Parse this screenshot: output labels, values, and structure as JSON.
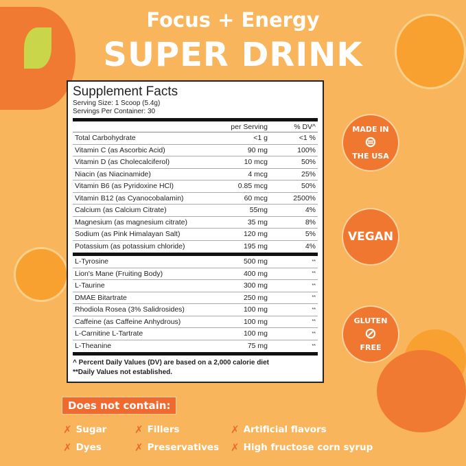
{
  "header": {
    "line1": "Focus + Energy",
    "line2": "SUPER DRINK"
  },
  "facts": {
    "title": "Supplement Facts",
    "serving_size": "Serving Size: 1 Scoop (5.4g)",
    "servings": "Servings Per Container: 30",
    "col_amount": "per Serving",
    "col_dv": "% DV^",
    "rows1": [
      [
        "Total Carbohydrate",
        "<1 g",
        "<1 %"
      ],
      [
        "Vitamin C (as Ascorbic Acid)",
        "90 mg",
        "100%"
      ],
      [
        "Vitamin D (as Cholecalciferol)",
        "10 mcg",
        "50%"
      ],
      [
        "Niacin (as Niacinamide)",
        "4 mcg",
        "25%"
      ],
      [
        "Vitamin B6 (as Pyridoxine HCl)",
        "0.85 mcg",
        "50%"
      ],
      [
        "Vitamin B12 (as Cyanocobalamin)",
        "60 mcg",
        "2500%"
      ],
      [
        "Calcium (as Calcium Citrate)",
        "55mg",
        "4%"
      ],
      [
        "Magnesium (as magnesium citrate)",
        "35 mg",
        "8%"
      ],
      [
        "Sodium (as Pink Himalayan Salt)",
        "120 mg",
        "5%"
      ],
      [
        "Potassium (as potassium chloride)",
        "195 mg",
        "4%"
      ]
    ],
    "rows2": [
      [
        "L-Tyrosine",
        "500 mg",
        "**"
      ],
      [
        "Lion's Mane (Fruiting Body)",
        "400 mg",
        "**"
      ],
      [
        "L-Taurine",
        "300 mg",
        "**"
      ],
      [
        "DMAE Bitartrate",
        "250 mg",
        "**"
      ],
      [
        "Rhodiola Rosea (3% Salidrosides)",
        "100 mg",
        "**"
      ],
      [
        "Caffeine (as Caffeine Anhydrous)",
        "100 mg",
        "**"
      ],
      [
        "L-Carnitine L-Tartrate",
        "100 mg",
        "**"
      ],
      [
        "L-Theanine",
        "75 mg",
        "**"
      ]
    ],
    "footnote1": "^ Percent Daily Values (DV) are based on a 2,000 calorie diet",
    "footnote2": "**Daily Values not established."
  },
  "badges": {
    "usa_top": "MADE IN",
    "usa_bottom": "THE USA",
    "vegan": "VEGAN",
    "gluten_top": "GLUTEN",
    "gluten_bottom": "FREE"
  },
  "free_from": {
    "title": "Does not contain:",
    "items": [
      "Sugar",
      "Fillers",
      "Artificial flavors",
      "Dyes",
      "Preservatives",
      "High fructose corn syrup"
    ]
  },
  "colors": {
    "background": "#f8b55c",
    "accent": "#f0692f"
  }
}
